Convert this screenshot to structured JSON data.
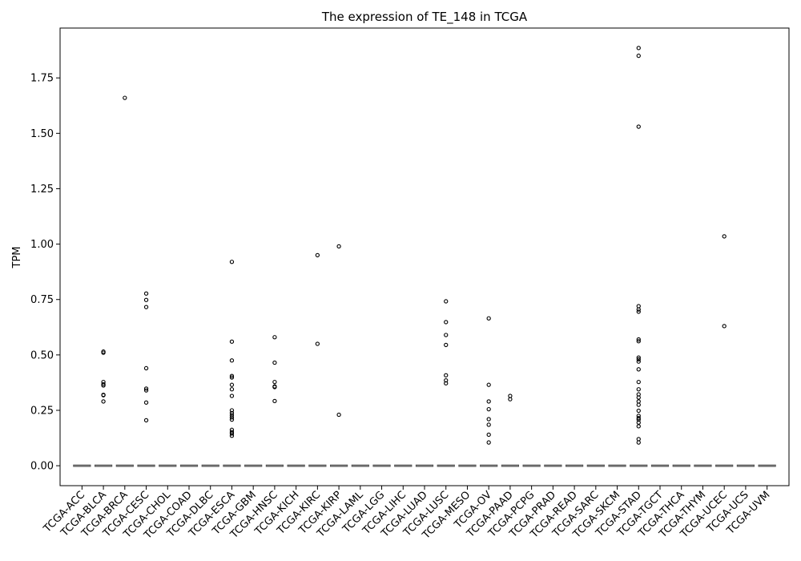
{
  "chart_data": {
    "type": "box",
    "title": "The expression of TE_148 in TCGA",
    "xlabel": "",
    "ylabel": "TPM",
    "ylim": [
      -0.09,
      1.975
    ],
    "yticks": [
      0.0,
      0.25,
      0.5,
      0.75,
      1.0,
      1.25,
      1.5,
      1.75
    ],
    "ytick_labels": [
      "0.00",
      "0.25",
      "0.50",
      "0.75",
      "1.00",
      "1.25",
      "1.50",
      "1.75"
    ],
    "grid": false,
    "categories": [
      "TCGA-ACC",
      "TCGA-BLCA",
      "TCGA-BRCA",
      "TCGA-CESC",
      "TCGA-CHOL",
      "TCGA-COAD",
      "TCGA-DLBC",
      "TCGA-ESCA",
      "TCGA-GBM",
      "TCGA-HNSC",
      "TCGA-KICH",
      "TCGA-KIRC",
      "TCGA-KIRP",
      "TCGA-LAML",
      "TCGA-LGG",
      "TCGA-LIHC",
      "TCGA-LUAD",
      "TCGA-LUSC",
      "TCGA-MESO",
      "TCGA-OV",
      "TCGA-PAAD",
      "TCGA-PCPG",
      "TCGA-PRAD",
      "TCGA-READ",
      "TCGA-SARC",
      "TCGA-SKCM",
      "TCGA-STAD",
      "TCGA-TGCT",
      "TCGA-THCA",
      "TCGA-THYM",
      "TCGA-UCEC",
      "TCGA-UCS",
      "TCGA-UVM"
    ],
    "box_value": 0.0,
    "box_color": "#4c4c4c",
    "box_fill": "#808080",
    "outlier_color": "#000000",
    "outliers": [
      [],
      [
        0.515,
        0.51,
        0.378,
        0.368,
        0.362,
        0.32,
        0.318,
        0.29
      ],
      [
        1.66
      ],
      [
        0.777,
        0.748,
        0.716,
        0.44,
        0.348,
        0.34,
        0.285,
        0.205
      ],
      [],
      [],
      [],
      [
        0.92,
        0.56,
        0.475,
        0.405,
        0.398,
        0.365,
        0.345,
        0.315,
        0.25,
        0.238,
        0.228,
        0.218,
        0.208,
        0.162,
        0.152,
        0.145,
        0.135
      ],
      [],
      [
        0.58,
        0.465,
        0.378,
        0.358,
        0.355,
        0.292
      ],
      [],
      [
        0.95,
        0.55
      ],
      [
        0.99,
        0.23
      ],
      [],
      [],
      [],
      [],
      [
        0.742,
        0.648,
        0.59,
        0.545,
        0.408,
        0.385,
        0.372
      ],
      [],
      [
        0.665,
        0.365,
        0.29,
        0.255,
        0.21,
        0.185,
        0.14,
        0.105
      ],
      [
        0.315,
        0.3
      ],
      [],
      [],
      [],
      [],
      [],
      [
        1.885,
        1.85,
        1.53,
        0.72,
        0.705,
        0.695,
        0.57,
        0.562,
        0.488,
        0.48,
        0.47,
        0.435,
        0.378,
        0.345,
        0.322,
        0.308,
        0.29,
        0.275,
        0.248,
        0.225,
        0.215,
        0.208,
        0.195,
        0.178,
        0.12,
        0.105
      ],
      [],
      [],
      [],
      [
        1.035,
        0.63
      ],
      [],
      []
    ]
  }
}
